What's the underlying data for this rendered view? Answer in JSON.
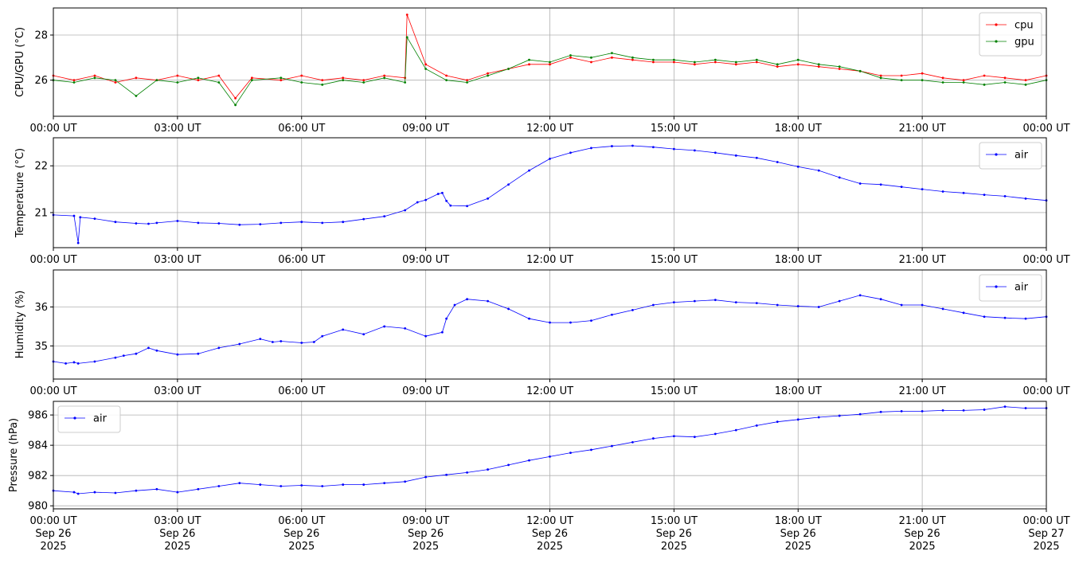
{
  "chart_data": [
    {
      "type": "line",
      "ylabel": "CPU/GPU (°C)",
      "ylim": [
        24.4,
        29.2
      ],
      "yticks": [
        26,
        28
      ],
      "ytick_labels": [
        "26",
        "28"
      ],
      "xticks": [
        0,
        3,
        6,
        9,
        12,
        15,
        18,
        21,
        24
      ],
      "xtick_labels": [
        "00:00 UT",
        "03:00 UT",
        "06:00 UT",
        "09:00 UT",
        "12:00 UT",
        "15:00 UT",
        "18:00 UT",
        "21:00 UT",
        "00:00 UT"
      ],
      "xlim": [
        0,
        24
      ],
      "grid": true,
      "legend": "top-right",
      "series": [
        {
          "name": "cpu",
          "color": "#ff0000",
          "x": [
            0.0,
            0.5,
            1.0,
            1.5,
            2.0,
            2.5,
            3.0,
            3.5,
            4.0,
            4.4,
            4.8,
            5.5,
            6.0,
            6.5,
            7.0,
            7.5,
            8.0,
            8.5,
            8.55,
            9.0,
            9.5,
            10.0,
            10.5,
            11.0,
            11.5,
            12.0,
            12.5,
            13.0,
            13.5,
            14.0,
            14.5,
            15.0,
            15.5,
            16.0,
            16.5,
            17.0,
            17.5,
            18.0,
            18.5,
            19.0,
            19.5,
            20.0,
            20.5,
            21.0,
            21.5,
            22.0,
            22.5,
            23.0,
            23.5,
            24.0
          ],
          "y": [
            26.2,
            26.0,
            26.2,
            25.9,
            26.1,
            26.0,
            26.2,
            26.0,
            26.2,
            25.2,
            26.1,
            26.0,
            26.2,
            26.0,
            26.1,
            26.0,
            26.2,
            26.1,
            28.9,
            26.7,
            26.2,
            26.0,
            26.3,
            26.5,
            26.7,
            26.7,
            27.0,
            26.8,
            27.0,
            26.9,
            26.8,
            26.8,
            26.7,
            26.8,
            26.7,
            26.8,
            26.6,
            26.7,
            26.6,
            26.5,
            26.4,
            26.2,
            26.2,
            26.3,
            26.1,
            26.0,
            26.2,
            26.1,
            26.0,
            26.2
          ]
        },
        {
          "name": "gpu",
          "color": "#008000",
          "x": [
            0.0,
            0.5,
            1.0,
            1.5,
            2.0,
            2.5,
            3.0,
            3.5,
            4.0,
            4.4,
            4.8,
            5.5,
            6.0,
            6.5,
            7.0,
            7.5,
            8.0,
            8.5,
            8.55,
            9.0,
            9.5,
            10.0,
            10.5,
            11.0,
            11.5,
            12.0,
            12.5,
            13.0,
            13.5,
            14.0,
            14.5,
            15.0,
            15.5,
            16.0,
            16.5,
            17.0,
            17.5,
            18.0,
            18.5,
            19.0,
            19.5,
            20.0,
            20.5,
            21.0,
            21.5,
            22.0,
            22.5,
            23.0,
            23.5,
            24.0
          ],
          "y": [
            26.0,
            25.9,
            26.1,
            26.0,
            25.3,
            26.0,
            25.9,
            26.1,
            25.9,
            24.9,
            26.0,
            26.1,
            25.9,
            25.8,
            26.0,
            25.9,
            26.1,
            25.9,
            27.9,
            26.5,
            26.0,
            25.9,
            26.2,
            26.5,
            26.9,
            26.8,
            27.1,
            27.0,
            27.2,
            27.0,
            26.9,
            26.9,
            26.8,
            26.9,
            26.8,
            26.9,
            26.7,
            26.9,
            26.7,
            26.6,
            26.4,
            26.1,
            26.0,
            26.0,
            25.9,
            25.9,
            25.8,
            25.9,
            25.8,
            26.0
          ]
        }
      ]
    },
    {
      "type": "line",
      "ylabel": "Temperature (°C)",
      "ylim": [
        20.25,
        22.6
      ],
      "yticks": [
        21,
        22
      ],
      "ytick_labels": [
        "21",
        "22"
      ],
      "xticks": [
        0,
        3,
        6,
        9,
        12,
        15,
        18,
        21,
        24
      ],
      "xtick_labels": [
        "00:00 UT",
        "03:00 UT",
        "06:00 UT",
        "09:00 UT",
        "12:00 UT",
        "15:00 UT",
        "18:00 UT",
        "21:00 UT",
        "00:00 UT"
      ],
      "xlim": [
        0,
        24
      ],
      "grid": true,
      "legend": "top-right",
      "series": [
        {
          "name": "air",
          "color": "#0000ff",
          "x": [
            0.0,
            0.5,
            0.6,
            0.65,
            1.0,
            1.5,
            2.0,
            2.3,
            2.5,
            3.0,
            3.5,
            4.0,
            4.5,
            5.0,
            5.5,
            6.0,
            6.5,
            7.0,
            7.5,
            8.0,
            8.5,
            8.8,
            9.0,
            9.3,
            9.4,
            9.5,
            9.6,
            10.0,
            10.5,
            11.0,
            11.5,
            12.0,
            12.5,
            13.0,
            13.5,
            14.0,
            14.5,
            15.0,
            15.5,
            16.0,
            16.5,
            17.0,
            17.5,
            18.0,
            18.5,
            19.0,
            19.5,
            20.0,
            20.5,
            21.0,
            21.5,
            22.0,
            22.5,
            23.0,
            23.5,
            24.0
          ],
          "y": [
            20.95,
            20.93,
            20.35,
            20.9,
            20.87,
            20.8,
            20.77,
            20.76,
            20.78,
            20.82,
            20.78,
            20.77,
            20.74,
            20.75,
            20.78,
            20.8,
            20.78,
            20.8,
            20.86,
            20.92,
            21.05,
            21.22,
            21.27,
            21.4,
            21.42,
            21.25,
            21.15,
            21.14,
            21.3,
            21.6,
            21.9,
            22.15,
            22.28,
            22.38,
            22.42,
            22.43,
            22.4,
            22.36,
            22.33,
            22.28,
            22.22,
            22.17,
            22.08,
            21.98,
            21.9,
            21.75,
            21.62,
            21.6,
            21.55,
            21.5,
            21.45,
            21.42,
            21.38,
            21.35,
            21.3,
            21.26
          ]
        }
      ]
    },
    {
      "type": "line",
      "ylabel": "Humidity (%)",
      "ylim": [
        34.15,
        36.95
      ],
      "yticks": [
        35,
        36
      ],
      "ytick_labels": [
        "35",
        "36"
      ],
      "xticks": [
        0,
        3,
        6,
        9,
        12,
        15,
        18,
        21,
        24
      ],
      "xtick_labels": [
        "00:00 UT",
        "03:00 UT",
        "06:00 UT",
        "09:00 UT",
        "12:00 UT",
        "15:00 UT",
        "18:00 UT",
        "21:00 UT",
        "00:00 UT"
      ],
      "xlim": [
        0,
        24
      ],
      "grid": true,
      "legend": "top-right",
      "series": [
        {
          "name": "air",
          "color": "#0000ff",
          "x": [
            0.0,
            0.3,
            0.5,
            0.6,
            1.0,
            1.5,
            1.7,
            2.0,
            2.3,
            2.5,
            3.0,
            3.5,
            4.0,
            4.5,
            5.0,
            5.3,
            5.5,
            6.0,
            6.3,
            6.5,
            7.0,
            7.5,
            8.0,
            8.5,
            9.0,
            9.4,
            9.5,
            9.7,
            10.0,
            10.5,
            11.0,
            11.5,
            12.0,
            12.5,
            13.0,
            13.5,
            14.0,
            14.5,
            15.0,
            15.5,
            16.0,
            16.5,
            17.0,
            17.5,
            18.0,
            18.5,
            19.0,
            19.5,
            20.0,
            20.5,
            21.0,
            21.5,
            22.0,
            22.5,
            23.0,
            23.5,
            24.0
          ],
          "y": [
            34.6,
            34.55,
            34.58,
            34.55,
            34.6,
            34.7,
            34.75,
            34.8,
            34.95,
            34.88,
            34.78,
            34.8,
            34.95,
            35.05,
            35.18,
            35.1,
            35.12,
            35.08,
            35.1,
            35.25,
            35.42,
            35.3,
            35.5,
            35.45,
            35.25,
            35.35,
            35.7,
            36.05,
            36.2,
            36.15,
            35.95,
            35.7,
            35.6,
            35.6,
            35.65,
            35.8,
            35.92,
            36.05,
            36.12,
            36.15,
            36.18,
            36.12,
            36.1,
            36.05,
            36.02,
            36.0,
            36.15,
            36.3,
            36.2,
            36.05,
            36.05,
            35.95,
            35.85,
            35.75,
            35.72,
            35.7,
            35.75
          ]
        }
      ]
    },
    {
      "type": "line",
      "ylabel": "Pressure (hPa)",
      "ylim": [
        979.8,
        986.9
      ],
      "yticks": [
        980,
        982,
        984,
        986
      ],
      "ytick_labels": [
        "980",
        "982",
        "984",
        "986"
      ],
      "xticks": [
        0,
        3,
        6,
        9,
        12,
        15,
        18,
        21,
        24
      ],
      "xtick_labels": [
        "00:00 UT\nSep 26\n2025",
        "03:00 UT\nSep 26\n2025",
        "06:00 UT\nSep 26\n2025",
        "09:00 UT\nSep 26\n2025",
        "12:00 UT\nSep 26\n2025",
        "15:00 UT\nSep 26\n2025",
        "18:00 UT\nSep 26\n2025",
        "21:00 UT\nSep 26\n2025",
        "00:00 UT\nSep 27\n2025"
      ],
      "xlim": [
        0,
        24
      ],
      "grid": true,
      "legend": "top-left",
      "series": [
        {
          "name": "air",
          "color": "#0000ff",
          "x": [
            0.0,
            0.5,
            0.6,
            1.0,
            1.5,
            2.0,
            2.5,
            3.0,
            3.5,
            4.0,
            4.5,
            5.0,
            5.5,
            6.0,
            6.5,
            7.0,
            7.5,
            8.0,
            8.5,
            9.0,
            9.5,
            10.0,
            10.5,
            11.0,
            11.5,
            12.0,
            12.5,
            13.0,
            13.5,
            14.0,
            14.5,
            15.0,
            15.5,
            16.0,
            16.5,
            17.0,
            17.5,
            18.0,
            18.5,
            19.0,
            19.5,
            20.0,
            20.5,
            21.0,
            21.5,
            22.0,
            22.5,
            23.0,
            23.5,
            24.0
          ],
          "y": [
            981.0,
            980.9,
            980.8,
            980.9,
            980.85,
            981.0,
            981.1,
            980.9,
            981.1,
            981.3,
            981.5,
            981.4,
            981.3,
            981.35,
            981.3,
            981.4,
            981.4,
            981.5,
            981.6,
            981.9,
            982.05,
            982.2,
            982.4,
            982.7,
            983.0,
            983.25,
            983.5,
            983.7,
            983.95,
            984.2,
            984.45,
            984.6,
            984.55,
            984.75,
            985.0,
            985.3,
            985.55,
            985.7,
            985.85,
            985.95,
            986.05,
            986.2,
            986.25,
            986.25,
            986.3,
            986.3,
            986.35,
            986.55,
            986.45,
            986.45
          ]
        }
      ]
    }
  ]
}
